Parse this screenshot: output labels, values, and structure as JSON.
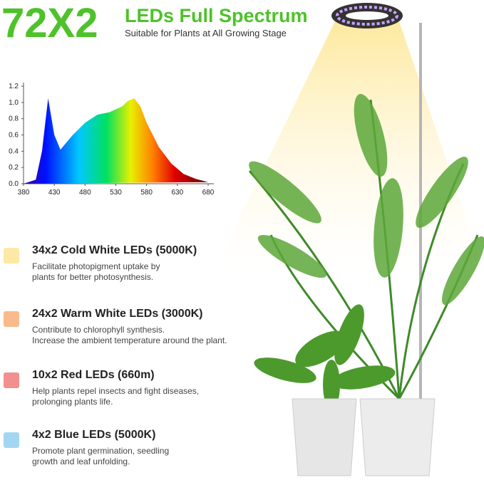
{
  "header": {
    "title_number": "72X2",
    "title": "LEDs Full Spectrum",
    "subtitle": "Suitable for Plants at All Growing Stage"
  },
  "chart_data": {
    "type": "area",
    "x": [
      380,
      400,
      410,
      420,
      430,
      440,
      460,
      480,
      500,
      520,
      540,
      550,
      560,
      570,
      580,
      600,
      620,
      640,
      660,
      680
    ],
    "values": [
      0,
      0.05,
      0.4,
      1.05,
      0.6,
      0.42,
      0.6,
      0.75,
      0.85,
      0.88,
      0.95,
      1.02,
      1.05,
      0.95,
      0.75,
      0.45,
      0.25,
      0.12,
      0.06,
      0.02
    ],
    "xlim": [
      380,
      680
    ],
    "ylim": [
      0,
      1.2
    ],
    "xticks": [
      380,
      430,
      480,
      530,
      580,
      630,
      680
    ],
    "yticks": [
      {
        "value": 0,
        "label": "0.0"
      },
      {
        "value": 0.2,
        "label": "0.2"
      },
      {
        "value": 0.4,
        "label": "0.4"
      },
      {
        "value": 0.6,
        "label": "0.6"
      },
      {
        "value": 0.8,
        "label": "0.8"
      },
      {
        "value": 1,
        "label": "1.0"
      },
      {
        "value": 1.2,
        "label": "1.2"
      }
    ]
  },
  "items": [
    {
      "title": "34x2 Cold White LEDs (5000K)",
      "color": "#fde9a6",
      "description": [
        "Facilitate photopigment uptake by",
        "plants for better photosynthesis."
      ]
    },
    {
      "title": "24x2 Warm White LEDs (3000K)",
      "color": "#f9bb8c",
      "description": [
        "Contribute to chlorophyll synthesis.",
        "Increase the ambient temperature around the plant."
      ]
    },
    {
      "title": "10x2 Red LEDs (660m)",
      "color": "#f28f8f",
      "description": [
        "Help plants repel insects and fight diseases,",
        "prolonging plants life."
      ]
    },
    {
      "title": "4x2 Blue LEDs (5000K)",
      "color": "#a3d6f2",
      "description": [
        "Promote plant germination, seedling",
        "growth and leaf unfolding."
      ]
    }
  ]
}
